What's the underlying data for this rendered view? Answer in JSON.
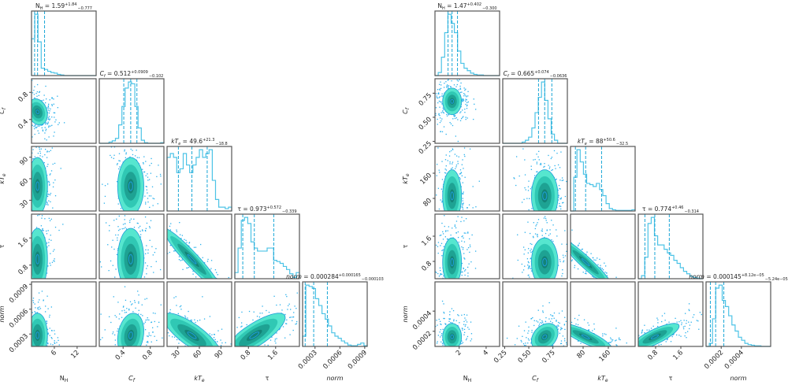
{
  "chart_data": [
    {
      "type": "corner",
      "colors": {
        "hist": "#4cc3e6",
        "scatter": "#29b0ec",
        "contour_levels": [
          "#56e6cf",
          "#30c8b4",
          "#1ea293",
          "#138377"
        ],
        "contour_edge": "#1e9fd8"
      },
      "params": [
        {
          "label_main": "N",
          "label_sub": "H",
          "italic": false,
          "value": "1.59",
          "plus": "+1.84",
          "minus": "−0.777",
          "median": 1.59,
          "q16": 0.81,
          "q84": 3.43,
          "range": [
            0,
            17
          ],
          "ticks": [
            6,
            12
          ],
          "tick_labels": [
            "6",
            "12"
          ],
          "hist": [
            0.6,
            1.0,
            0.55,
            0.12,
            0.1,
            0.07,
            0.05,
            0.04,
            0.02,
            0.01,
            0,
            0,
            0,
            0,
            0,
            0,
            0,
            0,
            0,
            0
          ]
        },
        {
          "label_main": "C",
          "label_sub": "f",
          "italic": true,
          "value": "0.512",
          "plus": "+0.0909",
          "minus": "−0.102",
          "median": 0.512,
          "q16": 0.41,
          "q84": 0.603,
          "range": [
            0.05,
            1.0
          ],
          "ticks": [
            0.4,
            0.8
          ],
          "tick_labels": [
            "0.4",
            "0.8"
          ],
          "hist": [
            0,
            0,
            0,
            0.02,
            0.04,
            0.08,
            0.3,
            0.6,
            0.9,
            1.0,
            0.97,
            0.6,
            0.25,
            0.05,
            0.01,
            0,
            0,
            0,
            0,
            0.01
          ]
        },
        {
          "label_main": "kT",
          "label_sub": "e",
          "italic": true,
          "value": "49.6",
          "plus": "+21.3",
          "minus": "−18.8",
          "median": 49.6,
          "q16": 30.8,
          "q84": 70.9,
          "range": [
            15,
            105
          ],
          "ticks": [
            30,
            60,
            90
          ],
          "tick_labels": [
            "30",
            "60",
            "90"
          ],
          "hist": [
            0.7,
            0.75,
            0.7,
            0.5,
            0.55,
            0.75,
            0.6,
            0.5,
            0.6,
            0.7,
            0.8,
            0.7,
            0.75,
            0.8,
            0.4,
            0.15,
            0.05,
            0.05,
            0.03,
            0.05
          ]
        },
        {
          "label_main": "τ",
          "label_sub": "",
          "italic": false,
          "value": "0.973",
          "plus": "+0.572",
          "minus": "−0.339",
          "median": 0.973,
          "q16": 0.634,
          "q84": 1.545,
          "range": [
            0.4,
            2.3
          ],
          "ticks": [
            0.8,
            1.6
          ],
          "tick_labels": [
            "0.8",
            "1.6"
          ],
          "hist": [
            0.1,
            0.5,
            0.95,
            1.0,
            0.9,
            0.6,
            0.5,
            0.45,
            0.45,
            0.45,
            0.5,
            0.5,
            0.3,
            0.28,
            0.25,
            0.2,
            0.15,
            0.08,
            0.02,
            0.1
          ]
        },
        {
          "label_main": "norm",
          "label_sub": "",
          "italic": true,
          "value": "0.000284",
          "plus": "+0.000165",
          "minus": "−0.000103",
          "median": 0.000284,
          "q16": 0.000181,
          "q84": 0.000449,
          "range": [
            0.00015,
            0.00093
          ],
          "ticks": [
            0.0003,
            0.0006,
            0.0009
          ],
          "tick_labels": [
            "0.0003",
            "0.0006",
            "0.0009"
          ],
          "hist": [
            0.15,
            0.9,
            0.88,
            0.85,
            0.7,
            0.6,
            0.48,
            0.4,
            0.3,
            0.2,
            0.15,
            0.12,
            0.08,
            0.05,
            0.02,
            0.01,
            0.01,
            0.03,
            0.05,
            0.01
          ]
        }
      ],
      "correlation": {
        "1-0": -0.2,
        "2-0": 0,
        "2-1": 0,
        "3-0": 0,
        "3-1": 0,
        "3-2": -0.95,
        "4-0": 0,
        "4-1": 0.2,
        "4-2": -0.8,
        "4-3": 0.8
      }
    },
    {
      "type": "corner",
      "colors": {
        "hist": "#4cc3e6",
        "scatter": "#29b0ec",
        "contour_levels": [
          "#56e6cf",
          "#30c8b4",
          "#1ea293",
          "#138377"
        ],
        "contour_edge": "#1e9fd8"
      },
      "params": [
        {
          "label_main": "N",
          "label_sub": "H",
          "italic": false,
          "value": "1.47",
          "plus": "+0.402",
          "minus": "−0.300",
          "median": 1.47,
          "q16": 1.17,
          "q84": 1.872,
          "range": [
            0.2,
            5
          ],
          "ticks": [
            2,
            4
          ],
          "tick_labels": [
            "2",
            "4"
          ],
          "hist": [
            0,
            0.05,
            0.3,
            0.7,
            1.0,
            0.85,
            0.7,
            0.4,
            0.2,
            0.12,
            0.08,
            0.04,
            0.02,
            0.01,
            0.01,
            0,
            0,
            0,
            0,
            0
          ]
        },
        {
          "label_main": "C",
          "label_sub": "f",
          "italic": true,
          "value": "0.665",
          "plus": "+0.074",
          "minus": "−0.0636",
          "median": 0.665,
          "q16": 0.601,
          "q84": 0.739,
          "range": [
            0.23,
            0.9
          ],
          "ticks": [
            0.25,
            0.5,
            0.75
          ],
          "tick_labels": [
            "0.25",
            "0.50",
            "0.75"
          ],
          "hist": [
            0,
            0,
            0,
            0,
            0,
            0,
            0.02,
            0.05,
            0.1,
            0.25,
            0.5,
            0.75,
            1.0,
            0.7,
            0.4,
            0.15,
            0.05,
            0,
            0,
            0
          ]
        },
        {
          "label_main": "kT",
          "label_sub": "e",
          "italic": true,
          "value": "88",
          "plus": "+50.6",
          "minus": "−32.5",
          "median": 88,
          "q16": 55.5,
          "q84": 138.6,
          "range": [
            40,
            245
          ],
          "ticks": [
            80,
            160
          ],
          "tick_labels": [
            "80",
            "160"
          ],
          "hist": [
            0,
            0.55,
            1.0,
            0.8,
            0.6,
            0.45,
            0.43,
            0.4,
            0.45,
            0.35,
            0.25,
            0.12,
            0.04,
            0.02,
            0.01,
            0.01,
            0.01,
            0.01,
            0.01,
            0.02
          ]
        },
        {
          "label_main": "τ",
          "label_sub": "",
          "italic": false,
          "value": "0.774",
          "plus": "+0.46",
          "minus": "−0.314",
          "median": 0.774,
          "q16": 0.46,
          "q84": 1.234,
          "range": [
            0.25,
            2.3
          ],
          "ticks": [
            0.8,
            1.6
          ],
          "tick_labels": [
            "0.8",
            "1.6"
          ],
          "hist": [
            0,
            0.05,
            0.35,
            0.9,
            1.0,
            0.7,
            0.55,
            0.55,
            0.48,
            0.42,
            0.38,
            0.3,
            0.25,
            0.18,
            0.12,
            0.08,
            0.04,
            0.02,
            0.01,
            0
          ]
        },
        {
          "label_main": "norm",
          "label_sub": "",
          "italic": true,
          "value": "0.000145",
          "plus": "+8.12e−05",
          "minus": "−5.24e−05",
          "median": 0.000145,
          "q16": 9.26e-05,
          "q84": 0.000226,
          "range": [
            5e-05,
            0.00069
          ],
          "ticks": [
            0.0002,
            0.0004
          ],
          "tick_labels": [
            "0.0002",
            "0.0004"
          ],
          "hist": [
            0,
            0.05,
            0.45,
            0.95,
            1.0,
            0.75,
            0.65,
            0.5,
            0.35,
            0.25,
            0.15,
            0.1,
            0.05,
            0.03,
            0.02,
            0.01,
            0.01,
            0,
            0,
            0
          ]
        }
      ],
      "correlation": {
        "1-0": 0,
        "2-0": 0,
        "2-1": 0,
        "3-0": 0,
        "3-1": 0,
        "3-2": -0.95,
        "4-0": 0,
        "4-1": 0.3,
        "4-2": -0.85,
        "4-3": 0.8
      }
    }
  ]
}
